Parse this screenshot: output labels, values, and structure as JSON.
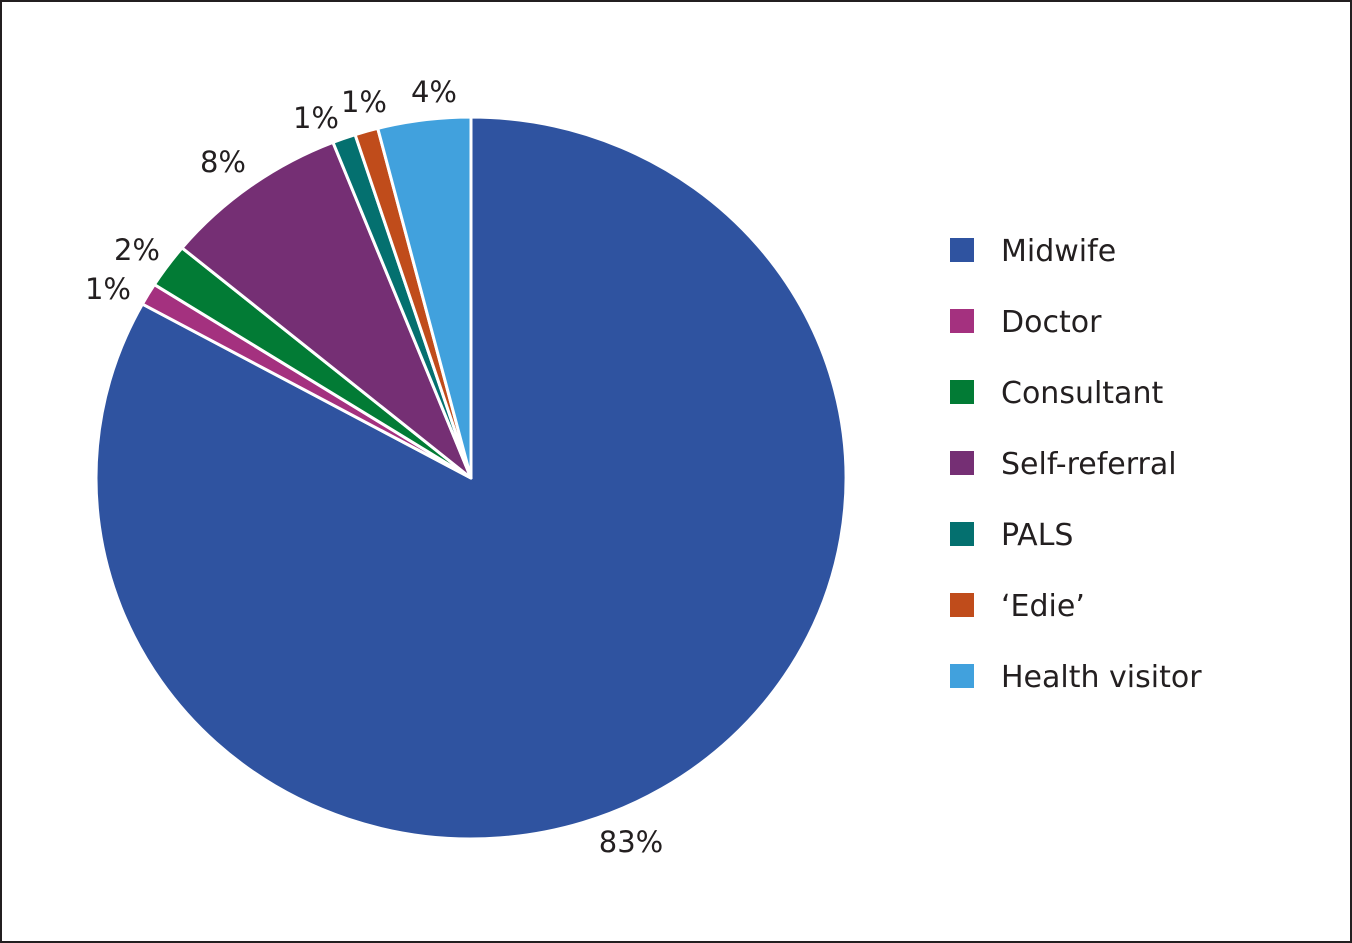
{
  "chart_data": {
    "type": "pie",
    "title": "",
    "start_angle_deg": 0,
    "direction": "clockwise",
    "slice_border_color": "#ffffff",
    "legend_position": "right",
    "series": [
      {
        "name": "Midwife",
        "value": 83,
        "label": "83%",
        "color": "#2f53a0"
      },
      {
        "name": "Doctor",
        "value": 1,
        "label": "1%",
        "color": "#a4317f"
      },
      {
        "name": "Consultant",
        "value": 2,
        "label": "2%",
        "color": "#027b35"
      },
      {
        "name": "Self-referral",
        "value": 8,
        "label": "8%",
        "color": "#752f74"
      },
      {
        "name": "PALS",
        "value": 1,
        "label": "1%",
        "color": "#04706f"
      },
      {
        "name": "‘Edie’",
        "value": 1,
        "label": "1%",
        "color": "#c04c1b"
      },
      {
        "name": "Health visitor",
        "value": 4,
        "label": "4%",
        "color": "#41a1dd"
      }
    ]
  }
}
